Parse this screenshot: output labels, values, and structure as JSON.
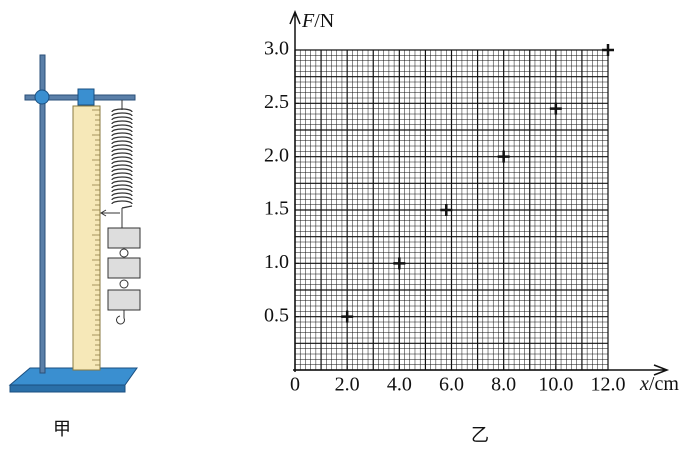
{
  "left_caption": "甲",
  "chart_data": {
    "type": "scatter",
    "caption": "乙",
    "x_label_var": "x",
    "x_label_unit": "/cm",
    "y_label_var": "F",
    "y_label_unit": "/N",
    "x": [
      2.0,
      4.0,
      5.8,
      8.0,
      10.0,
      12.0
    ],
    "values": [
      0.5,
      1.0,
      1.5,
      2.0,
      2.45,
      3.0
    ],
    "color": "#111111",
    "xlim": [
      0,
      12
    ],
    "ylim": [
      0,
      3
    ],
    "xticks": [
      0,
      {
        "value": 2,
        "label": "2.0"
      },
      {
        "value": 4,
        "label": "4.0"
      },
      {
        "value": 6,
        "label": "6.0"
      },
      {
        "value": 8,
        "label": "8.0"
      },
      {
        "value": 10,
        "label": "10.0"
      },
      {
        "value": 12,
        "label": "12.0"
      }
    ],
    "yticks": [
      {
        "value": 0.5,
        "label": "0.5"
      },
      {
        "value": 1,
        "label": "1.0"
      },
      {
        "value": 1.5,
        "label": "1.5"
      },
      {
        "value": 2,
        "label": "2.0"
      },
      {
        "value": 2.5,
        "label": "2.5"
      },
      {
        "value": 3,
        "label": "3.0"
      }
    ],
    "grid": true
  }
}
